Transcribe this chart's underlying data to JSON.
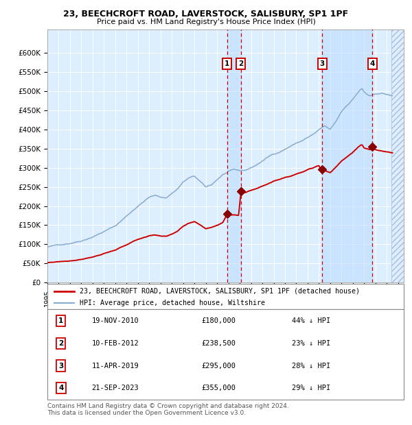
{
  "title_line1": "23, BEECHCROFT ROAD, LAVERSTOCK, SALISBURY, SP1 1PF",
  "title_line2": "Price paid vs. HM Land Registry's House Price Index (HPI)",
  "xlim_start": 1995.0,
  "xlim_end": 2026.5,
  "ylim_min": 0,
  "ylim_max": 660000,
  "yticks": [
    0,
    50000,
    100000,
    150000,
    200000,
    250000,
    300000,
    350000,
    400000,
    450000,
    500000,
    550000,
    600000
  ],
  "ytick_labels": [
    "£0",
    "£50K",
    "£100K",
    "£150K",
    "£200K",
    "£250K",
    "£300K",
    "£350K",
    "£400K",
    "£450K",
    "£500K",
    "£550K",
    "£600K"
  ],
  "xtick_years": [
    1995,
    1996,
    1997,
    1998,
    1999,
    2000,
    2001,
    2002,
    2003,
    2004,
    2005,
    2006,
    2007,
    2008,
    2009,
    2010,
    2011,
    2012,
    2013,
    2014,
    2015,
    2016,
    2017,
    2018,
    2019,
    2020,
    2021,
    2022,
    2023,
    2024,
    2025,
    2026
  ],
  "transactions": [
    {
      "num": 1,
      "date_dec": 2010.89,
      "price": 180000,
      "label": "19-NOV-2010",
      "pct": "44%",
      "dir": "↓"
    },
    {
      "num": 2,
      "date_dec": 2012.11,
      "price": 238500,
      "label": "10-FEB-2012",
      "pct": "23%",
      "dir": "↓"
    },
    {
      "num": 3,
      "date_dec": 2019.28,
      "price": 295000,
      "label": "11-APR-2019",
      "pct": "28%",
      "dir": "↓"
    },
    {
      "num": 4,
      "date_dec": 2023.73,
      "price": 355000,
      "label": "21-SEP-2023",
      "pct": "29%",
      "dir": "↓"
    }
  ],
  "legend_line1": "23, BEECHCROFT ROAD, LAVERSTOCK, SALISBURY, SP1 1PF (detached house)",
  "legend_line2": "HPI: Average price, detached house, Wiltshire",
  "legend_color1": "#cc0000",
  "legend_color2": "#88aacc",
  "footer": "Contains HM Land Registry data © Crown copyright and database right 2024.\nThis data is licensed under the Open Government Licence v3.0.",
  "bg_plot": "#ddeeff",
  "bg_fig": "#ffffff",
  "grid_color": "#ffffff",
  "hpi_color": "#88aacc",
  "price_color": "#cc0000",
  "vline_color": "#cc0000",
  "hatch_region_start": 2025.42
}
